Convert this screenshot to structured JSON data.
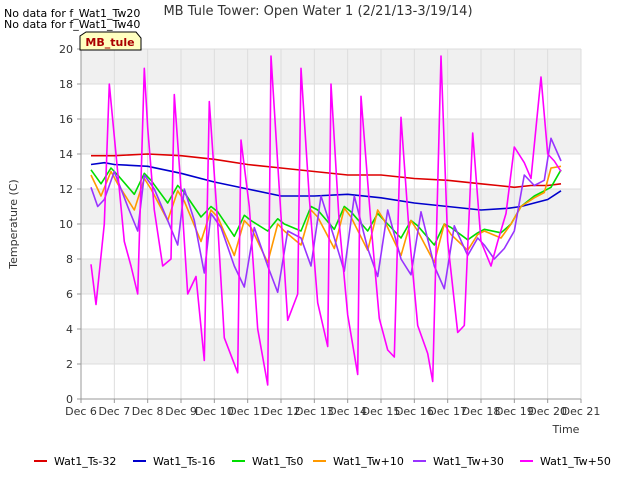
{
  "chart_data": {
    "type": "line",
    "title": "MB Tule Tower: Open Water 1 (2/21/13-3/19/14)",
    "xlabel": "Time",
    "ylabel": "Temperature (C)",
    "ylim": [
      0,
      20
    ],
    "xlim": [
      6,
      21
    ],
    "yticks": [
      0,
      2,
      4,
      6,
      8,
      10,
      12,
      14,
      16,
      18,
      20
    ],
    "xticks": [
      {
        "v": 6,
        "label": "Dec 6"
      },
      {
        "v": 7,
        "label": "Dec 7"
      },
      {
        "v": 8,
        "label": "Dec 8"
      },
      {
        "v": 9,
        "label": "Dec 9"
      },
      {
        "v": 10,
        "label": "Dec 10"
      },
      {
        "v": 11,
        "label": "Dec 11"
      },
      {
        "v": 12,
        "label": "Dec 12"
      },
      {
        "v": 13,
        "label": "Dec 13"
      },
      {
        "v": 14,
        "label": "Dec 14"
      },
      {
        "v": 15,
        "label": "Dec 15"
      },
      {
        "v": 16,
        "label": "Dec 16"
      },
      {
        "v": 17,
        "label": "Dec 17"
      },
      {
        "v": 18,
        "label": "Dec 18"
      },
      {
        "v": 19,
        "label": "Dec 19"
      },
      {
        "v": 20,
        "label": "Dec 20"
      },
      {
        "v": 21,
        "label": "Dec 21"
      }
    ],
    "grid": true,
    "legend_position": "bottom",
    "no_data_notes": [
      "No data for f_Wat1_Tw20",
      "No data for f_Wat1_Tw40"
    ],
    "site_badge": "MB_tule",
    "series": [
      {
        "name": "Wat1_Ts-32",
        "color": "#dd0000",
        "x": [
          6.3,
          7.0,
          8.0,
          9.0,
          10.0,
          11.0,
          12.0,
          13.0,
          14.0,
          15.0,
          16.0,
          17.0,
          18.0,
          18.5,
          19.0,
          19.5,
          20.0,
          20.4
        ],
        "y": [
          13.9,
          13.9,
          14.0,
          13.9,
          13.7,
          13.4,
          13.2,
          13.0,
          12.8,
          12.8,
          12.6,
          12.5,
          12.3,
          12.2,
          12.1,
          12.2,
          12.2,
          12.3
        ]
      },
      {
        "name": "Wat1_Ts-16",
        "color": "#0000cc",
        "x": [
          6.3,
          6.7,
          7.0,
          8.0,
          9.0,
          10.0,
          11.0,
          12.0,
          13.0,
          14.0,
          15.0,
          16.0,
          17.0,
          18.0,
          18.8,
          19.2,
          19.6,
          20.0,
          20.4
        ],
        "y": [
          13.4,
          13.5,
          13.4,
          13.3,
          12.9,
          12.4,
          12.0,
          11.6,
          11.6,
          11.7,
          11.5,
          11.2,
          11.0,
          10.8,
          10.9,
          11.0,
          11.2,
          11.4,
          11.9
        ]
      },
      {
        "name": "Wat1_Ts0",
        "color": "#00dd00",
        "x": [
          6.3,
          6.6,
          6.9,
          7.1,
          7.6,
          7.9,
          8.1,
          8.6,
          8.9,
          9.1,
          9.6,
          9.9,
          10.1,
          10.6,
          10.9,
          11.1,
          11.6,
          11.9,
          12.1,
          12.6,
          12.9,
          13.1,
          13.6,
          13.9,
          14.1,
          14.6,
          14.9,
          15.1,
          15.6,
          15.9,
          16.1,
          16.6,
          16.9,
          17.1,
          17.6,
          17.9,
          18.1,
          18.6,
          18.9,
          19.2,
          19.6,
          19.9,
          20.1,
          20.4
        ],
        "y": [
          13.1,
          12.3,
          13.2,
          12.8,
          11.7,
          12.9,
          12.5,
          11.2,
          12.2,
          11.8,
          10.4,
          11.0,
          10.7,
          9.3,
          10.5,
          10.2,
          9.6,
          10.3,
          10.0,
          9.6,
          11.0,
          10.8,
          9.7,
          11.0,
          10.7,
          9.6,
          10.6,
          10.2,
          9.2,
          10.2,
          9.9,
          8.8,
          10.0,
          9.8,
          9.1,
          9.5,
          9.7,
          9.5,
          10.0,
          11.0,
          11.6,
          11.9,
          12.1,
          13.1
        ]
      },
      {
        "name": "Wat1_Tw+10",
        "color": "#ff9900",
        "x": [
          6.3,
          6.6,
          6.9,
          7.1,
          7.6,
          7.9,
          8.1,
          8.6,
          8.9,
          9.1,
          9.6,
          9.9,
          10.1,
          10.6,
          10.9,
          11.1,
          11.6,
          11.9,
          12.1,
          12.6,
          12.9,
          13.1,
          13.6,
          13.9,
          14.1,
          14.6,
          14.9,
          15.1,
          15.6,
          15.9,
          16.1,
          16.6,
          16.9,
          17.1,
          17.6,
          17.9,
          18.1,
          18.6,
          18.9,
          19.2,
          19.6,
          19.9,
          20.1,
          20.4
        ],
        "y": [
          12.8,
          11.6,
          13.0,
          12.3,
          10.8,
          12.6,
          12.0,
          10.2,
          11.9,
          11.3,
          9.0,
          10.8,
          10.4,
          8.2,
          10.2,
          9.8,
          7.8,
          10.0,
          9.6,
          8.8,
          10.8,
          10.4,
          8.6,
          10.9,
          10.4,
          8.5,
          10.8,
          10.2,
          8.2,
          10.2,
          9.6,
          7.8,
          10.0,
          9.4,
          8.5,
          9.4,
          9.6,
          9.2,
          10.0,
          11.0,
          11.5,
          11.8,
          13.2,
          13.3
        ]
      },
      {
        "name": "Wat1_Tw+30",
        "color": "#9933ff",
        "x": [
          6.3,
          6.5,
          6.7,
          7.0,
          7.4,
          7.7,
          7.9,
          8.2,
          8.6,
          8.9,
          9.1,
          9.4,
          9.7,
          9.9,
          10.2,
          10.6,
          10.9,
          11.2,
          11.6,
          11.9,
          12.2,
          12.6,
          12.9,
          13.2,
          13.6,
          13.9,
          14.2,
          14.6,
          14.9,
          15.2,
          15.6,
          15.9,
          16.2,
          16.6,
          16.9,
          17.2,
          17.6,
          17.9,
          18.1,
          18.4,
          18.7,
          19.0,
          19.3,
          19.6,
          19.9,
          20.1,
          20.4
        ],
        "y": [
          12.1,
          11.0,
          11.4,
          13.0,
          11.0,
          9.6,
          12.8,
          12.0,
          10.2,
          8.8,
          12.0,
          10.2,
          7.2,
          10.6,
          9.8,
          7.6,
          6.4,
          9.8,
          7.6,
          6.1,
          9.6,
          9.2,
          7.6,
          11.6,
          9.2,
          7.3,
          11.6,
          8.6,
          7.0,
          10.8,
          8.0,
          7.1,
          10.7,
          7.6,
          6.3,
          9.9,
          8.2,
          9.2,
          8.8,
          8.0,
          8.6,
          9.6,
          12.8,
          12.2,
          12.5,
          14.9,
          13.6
        ]
      },
      {
        "name": "Wat1_Tw+50",
        "color": "#ff00ff",
        "x": [
          6.3,
          6.45,
          6.7,
          6.85,
          7.0,
          7.3,
          7.5,
          7.7,
          7.9,
          8.0,
          8.2,
          8.45,
          8.7,
          8.8,
          9.0,
          9.2,
          9.45,
          9.7,
          9.85,
          10.1,
          10.3,
          10.7,
          10.8,
          11.05,
          11.3,
          11.6,
          11.7,
          11.95,
          12.2,
          12.5,
          12.6,
          12.85,
          13.1,
          13.4,
          13.5,
          13.75,
          14.0,
          14.3,
          14.4,
          14.7,
          14.95,
          15.2,
          15.4,
          15.6,
          15.85,
          16.1,
          16.4,
          16.55,
          16.8,
          17.0,
          17.3,
          17.5,
          17.75,
          18.0,
          18.3,
          18.5,
          18.75,
          19.0,
          19.3,
          19.5,
          19.8,
          20.0,
          20.2,
          20.4
        ],
        "y": [
          7.7,
          5.4,
          10.0,
          18.0,
          15.0,
          9.0,
          7.6,
          6.0,
          18.9,
          15.5,
          10.8,
          7.6,
          8.0,
          17.4,
          12.0,
          6.0,
          7.0,
          2.2,
          17.0,
          10.0,
          3.5,
          1.5,
          14.8,
          11.0,
          4.0,
          0.8,
          19.6,
          12.0,
          4.5,
          6.0,
          18.9,
          11.5,
          5.5,
          3.0,
          18.0,
          10.0,
          4.8,
          1.4,
          17.3,
          10.0,
          4.6,
          2.8,
          2.4,
          16.1,
          9.4,
          4.2,
          2.6,
          1.0,
          19.6,
          9.0,
          3.8,
          4.2,
          15.2,
          9.0,
          7.6,
          9.0,
          10.6,
          14.4,
          13.5,
          12.6,
          18.4,
          14.0,
          13.6,
          13.0
        ]
      }
    ]
  }
}
